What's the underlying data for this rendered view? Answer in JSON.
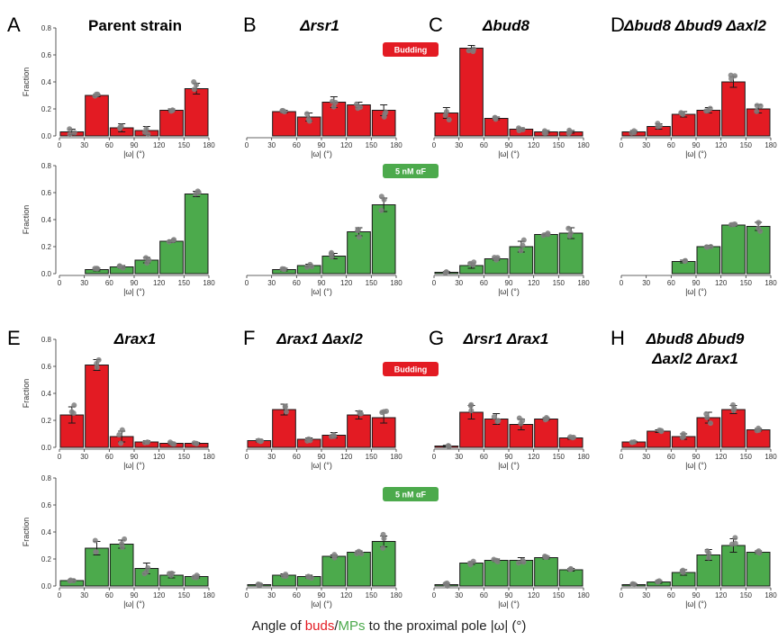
{
  "colors": {
    "budding": "#e31b23",
    "mp": "#4caa4c",
    "dot": "#7f7f7f",
    "axis": "#333333"
  },
  "axis_text": {
    "xlabel": "|ω| (°)",
    "ylabel": "Fraction",
    "xticks": [
      "0",
      "30",
      "60",
      "90",
      "120",
      "150",
      "180"
    ],
    "yticks": [
      "0.0",
      "0.2",
      "0.4",
      "0.6",
      "0.8"
    ]
  },
  "badges": {
    "budding": "Budding",
    "mp": "5 nM αF"
  },
  "bottom_label": {
    "prefix": "Angle of ",
    "buds": "buds",
    "slash": "/",
    "mps": "MPs",
    "suffix": " to the proximal pole |ω| (°)"
  },
  "panels": [
    {
      "letter": "A",
      "title": "Parent strain"
    },
    {
      "letter": "B",
      "title": "Δrsr1"
    },
    {
      "letter": "C",
      "title": "Δbud8"
    },
    {
      "letter": "D",
      "title": "Δbud8 Δbud9 Δaxl2"
    },
    {
      "letter": "E",
      "title": "Δrax1"
    },
    {
      "letter": "F",
      "title": "Δrax1 Δaxl2"
    },
    {
      "letter": "G",
      "title": "Δrsr1 Δrax1"
    },
    {
      "letter": "H",
      "title": "Δbud8 Δbud9",
      "title2": "Δaxl2 Δrax1"
    }
  ],
  "chart_data": [
    {
      "type": "bar",
      "panel": "A",
      "condition": "Budding",
      "x": [
        15,
        45,
        75,
        105,
        135,
        165
      ],
      "values": [
        0.03,
        0.3,
        0.06,
        0.04,
        0.19,
        0.35
      ],
      "errors": [
        0.02,
        0.01,
        0.03,
        0.03,
        0.01,
        0.04
      ],
      "xlim": [
        0,
        180
      ],
      "ylim": [
        0,
        0.8
      ]
    },
    {
      "type": "bar",
      "panel": "B",
      "condition": "Budding",
      "x": [
        15,
        45,
        75,
        105,
        135,
        165
      ],
      "values": [
        null,
        0.18,
        0.14,
        0.25,
        0.23,
        0.19
      ],
      "errors": [
        null,
        0.01,
        0.03,
        0.04,
        0.02,
        0.04
      ],
      "xlim": [
        0,
        180
      ],
      "ylim": [
        0,
        0.8
      ]
    },
    {
      "type": "bar",
      "panel": "C",
      "condition": "Budding",
      "x": [
        15,
        45,
        75,
        105,
        135,
        165
      ],
      "values": [
        0.17,
        0.65,
        0.13,
        0.05,
        0.03,
        0.03
      ],
      "errors": [
        0.04,
        0.02,
        0.01,
        0.01,
        0.01,
        0.01
      ],
      "xlim": [
        0,
        180
      ],
      "ylim": [
        0,
        0.8
      ]
    },
    {
      "type": "bar",
      "panel": "D",
      "condition": "Budding",
      "x": [
        15,
        45,
        75,
        105,
        135,
        165
      ],
      "values": [
        0.03,
        0.07,
        0.16,
        0.19,
        0.4,
        0.2
      ],
      "errors": [
        0.01,
        0.02,
        0.02,
        0.02,
        0.04,
        0.03
      ],
      "xlim": [
        0,
        180
      ],
      "ylim": [
        0,
        0.8
      ]
    },
    {
      "type": "bar",
      "panel": "A",
      "condition": "5 nM αF",
      "x": [
        15,
        45,
        75,
        105,
        135,
        165
      ],
      "values": [
        null,
        0.03,
        0.05,
        0.1,
        0.24,
        0.59
      ],
      "errors": [
        null,
        0.01,
        0.01,
        0.02,
        0.01,
        0.02
      ],
      "xlim": [
        0,
        180
      ],
      "ylim": [
        0,
        0.8
      ]
    },
    {
      "type": "bar",
      "panel": "B",
      "condition": "5 nM αF",
      "x": [
        15,
        45,
        75,
        105,
        135,
        165
      ],
      "values": [
        null,
        0.03,
        0.06,
        0.13,
        0.31,
        0.51
      ],
      "errors": [
        null,
        0.01,
        0.01,
        0.02,
        0.03,
        0.05
      ],
      "xlim": [
        0,
        180
      ],
      "ylim": [
        0,
        0.8
      ]
    },
    {
      "type": "bar",
      "panel": "C",
      "condition": "5 nM αF",
      "x": [
        15,
        45,
        75,
        105,
        135,
        165
      ],
      "values": [
        0.01,
        0.06,
        0.11,
        0.2,
        0.29,
        0.3
      ],
      "errors": [
        0.005,
        0.02,
        0.01,
        0.04,
        0.01,
        0.04
      ],
      "xlim": [
        0,
        180
      ],
      "ylim": [
        0,
        0.8
      ]
    },
    {
      "type": "bar",
      "panel": "D",
      "condition": "5 nM αF",
      "x": [
        15,
        45,
        75,
        105,
        135,
        165
      ],
      "values": [
        null,
        null,
        0.09,
        0.2,
        0.36,
        0.35
      ],
      "errors": [
        null,
        null,
        0.01,
        0.01,
        0.01,
        0.03
      ],
      "xlim": [
        0,
        180
      ],
      "ylim": [
        0,
        0.8
      ]
    },
    {
      "type": "bar",
      "panel": "E",
      "condition": "Budding",
      "x": [
        15,
        45,
        75,
        105,
        135,
        165
      ],
      "values": [
        0.24,
        0.61,
        0.08,
        0.04,
        0.03,
        0.03
      ],
      "errors": [
        0.06,
        0.04,
        0.04,
        0.01,
        0.01,
        0.005
      ],
      "xlim": [
        0,
        180
      ],
      "ylim": [
        0,
        0.8
      ]
    },
    {
      "type": "bar",
      "panel": "F",
      "condition": "Budding",
      "x": [
        15,
        45,
        75,
        105,
        135,
        165
      ],
      "values": [
        0.05,
        0.28,
        0.06,
        0.09,
        0.24,
        0.22
      ],
      "errors": [
        0.01,
        0.04,
        0.01,
        0.02,
        0.03,
        0.04
      ],
      "xlim": [
        0,
        180
      ],
      "ylim": [
        0,
        0.8
      ]
    },
    {
      "type": "bar",
      "panel": "G",
      "condition": "Budding",
      "x": [
        15,
        45,
        75,
        105,
        135,
        165
      ],
      "values": [
        0.01,
        0.26,
        0.21,
        0.17,
        0.21,
        0.07
      ],
      "errors": [
        0.005,
        0.05,
        0.04,
        0.04,
        0.01,
        0.01
      ],
      "xlim": [
        0,
        180
      ],
      "ylim": [
        0,
        0.8
      ]
    },
    {
      "type": "bar",
      "panel": "H",
      "condition": "Budding",
      "x": [
        15,
        45,
        75,
        105,
        135,
        165
      ],
      "values": [
        0.04,
        0.12,
        0.08,
        0.22,
        0.28,
        0.13
      ],
      "errors": [
        0.005,
        0.01,
        0.02,
        0.04,
        0.03,
        0.01
      ],
      "xlim": [
        0,
        180
      ],
      "ylim": [
        0,
        0.8
      ]
    },
    {
      "type": "bar",
      "panel": "E",
      "condition": "5 nM αF",
      "x": [
        15,
        45,
        75,
        105,
        135,
        165
      ],
      "values": [
        0.04,
        0.28,
        0.31,
        0.13,
        0.08,
        0.07
      ],
      "errors": [
        0.01,
        0.05,
        0.03,
        0.04,
        0.02,
        0.01
      ],
      "xlim": [
        0,
        180
      ],
      "ylim": [
        0,
        0.8
      ]
    },
    {
      "type": "bar",
      "panel": "F",
      "condition": "5 nM αF",
      "x": [
        15,
        45,
        75,
        105,
        135,
        165
      ],
      "values": [
        0.01,
        0.08,
        0.07,
        0.22,
        0.25,
        0.33
      ],
      "errors": [
        0.005,
        0.01,
        0.01,
        0.01,
        0.01,
        0.04
      ],
      "xlim": [
        0,
        180
      ],
      "ylim": [
        0,
        0.8
      ]
    },
    {
      "type": "bar",
      "panel": "G",
      "condition": "5 nM αF",
      "x": [
        15,
        45,
        75,
        105,
        135,
        165
      ],
      "values": [
        0.01,
        0.17,
        0.19,
        0.19,
        0.21,
        0.12
      ],
      "errors": [
        0.01,
        0.01,
        0.01,
        0.02,
        0.01,
        0.01
      ],
      "xlim": [
        0,
        180
      ],
      "ylim": [
        0,
        0.8
      ]
    },
    {
      "type": "bar",
      "panel": "H",
      "condition": "5 nM αF",
      "x": [
        15,
        45,
        75,
        105,
        135,
        165
      ],
      "values": [
        0.01,
        0.03,
        0.1,
        0.23,
        0.3,
        0.25
      ],
      "errors": [
        0.005,
        0.01,
        0.02,
        0.04,
        0.05,
        0.01
      ],
      "xlim": [
        0,
        180
      ],
      "ylim": [
        0,
        0.8
      ]
    }
  ]
}
